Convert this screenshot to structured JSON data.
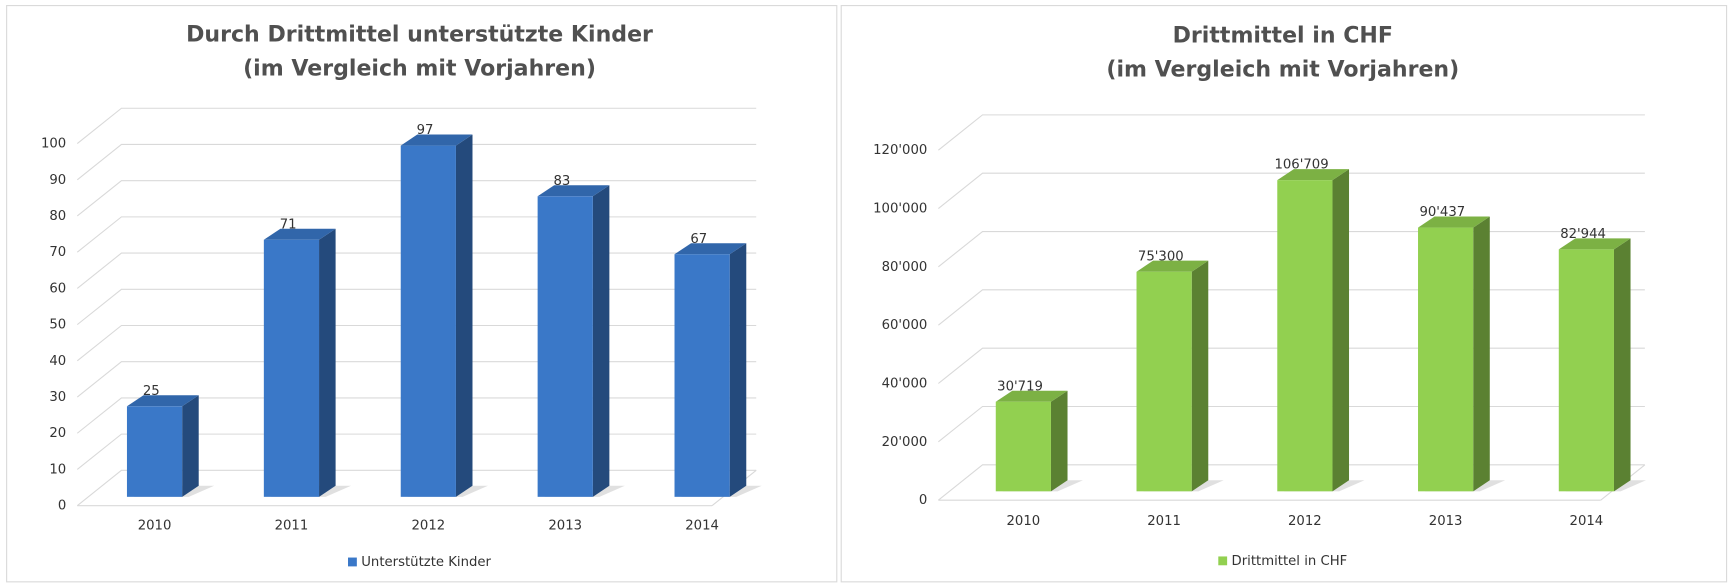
{
  "chart_data": [
    {
      "type": "bar",
      "title": "Durch Drittmittel unterstützte Kinder",
      "subtitle": "(im Vergleich mit Vorjahren)",
      "categories": [
        "2010",
        "2011",
        "2012",
        "2013",
        "2014"
      ],
      "series": [
        {
          "name": "Unterstützte Kinder",
          "color": "#3a78c8",
          "values": [
            25,
            71,
            97,
            83,
            67
          ]
        }
      ],
      "ylim": [
        0,
        100
      ],
      "yticks": [
        0,
        10,
        20,
        30,
        40,
        50,
        60,
        70,
        80,
        90,
        100
      ],
      "grid": true,
      "legend": "bottom"
    },
    {
      "type": "bar",
      "title": "Drittmittel in CHF",
      "subtitle": "(im Vergleich mit Vorjahren)",
      "categories": [
        "2010",
        "2011",
        "2012",
        "2013",
        "2014"
      ],
      "series": [
        {
          "name": "Drittmittel in CHF",
          "color": "#92d050",
          "values": [
            30719,
            75300,
            106709,
            90437,
            82944
          ],
          "value_labels": [
            "30'719",
            "75'300",
            "106'709",
            "90'437",
            "82'944"
          ]
        }
      ],
      "ylim": [
        0,
        120000
      ],
      "yticks": [
        0,
        {
          "value": 20000,
          "label": "20'000"
        },
        {
          "value": 40000,
          "label": "40'000"
        },
        {
          "value": 60000,
          "label": "60'000"
        },
        {
          "value": 80000,
          "label": "80'000"
        },
        {
          "value": 100000,
          "label": "100'000"
        },
        {
          "value": 120000,
          "label": "120'000"
        }
      ],
      "grid": true,
      "legend": "bottom"
    }
  ]
}
